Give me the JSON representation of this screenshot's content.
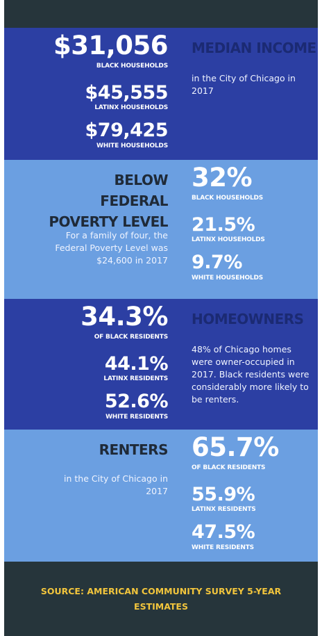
{
  "sections": [
    {
      "title": "MEDIAN INCOME",
      "note": "in the City of Chicago in 2017",
      "stats": [
        {
          "value": "$31,056",
          "label": "BLACK HOUSEHOLDS"
        },
        {
          "value": "$45,555",
          "label": "LATINX HOUSEHOLDS"
        },
        {
          "value": "$79,425",
          "label": "WHITE HOUSEHOLDS"
        }
      ]
    },
    {
      "title": "BELOW FEDERAL POVERTY LEVEL",
      "note": "For a family of four, the Federal Poverty Level was $24,600 in 2017",
      "stats": [
        {
          "value": "32%",
          "label": "BLACK HOUSEHOLDS"
        },
        {
          "value": "21.5%",
          "label": "LATINX HOUSEHOLDS"
        },
        {
          "value": "9.7%",
          "label": "WHITE HOUSEHOLDS"
        }
      ]
    },
    {
      "title": "HOMEOWNERS",
      "note": "48% of Chicago homes were owner-occupied in 2017. Black residents were considerably more likely to be renters.",
      "stats": [
        {
          "value": "34.3%",
          "label": "OF BLACK RESIDENTS"
        },
        {
          "value": "44.1%",
          "label": "LATINX RESIDENTS"
        },
        {
          "value": "52.6%",
          "label": "WHITE RESIDENTS"
        }
      ]
    },
    {
      "title": "RENTERS",
      "note": "in the City of Chicago in 2017",
      "stats": [
        {
          "value": "65.7%",
          "label": "OF BLACK RESIDENTS"
        },
        {
          "value": "55.9%",
          "label": "LATINX RESIDENTS"
        },
        {
          "value": "47.5%",
          "label": "WHITE RESIDENTS"
        }
      ]
    }
  ],
  "footer": "SOURCE: AMERICAN COMMUNITY SURVEY 5-YEAR ESTIMATES"
}
